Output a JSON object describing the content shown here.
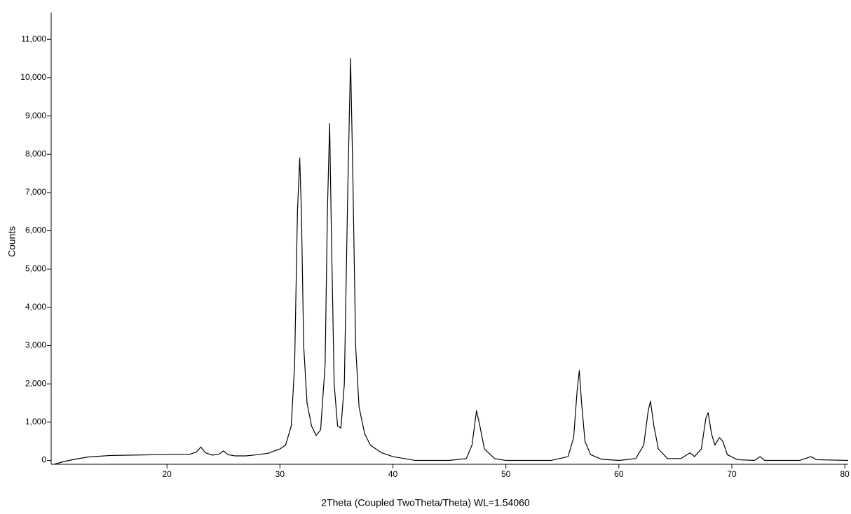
{
  "chart_data": {
    "type": "line",
    "xlabel": "2Theta (Coupled TwoTheta/Theta) WL=1.54060",
    "ylabel": "Counts",
    "color": "#000000",
    "x": [
      10,
      11,
      12,
      13,
      14,
      15,
      17,
      19,
      21,
      22,
      22.6,
      23,
      23.4,
      24,
      24.6,
      25,
      25.4,
      26,
      27,
      28,
      29,
      29.5,
      30,
      30.5,
      31,
      31.3,
      31.55,
      31.75,
      31.9,
      32.1,
      32.4,
      32.8,
      33.2,
      33.6,
      34.0,
      34.2,
      34.4,
      34.55,
      34.8,
      35.1,
      35.4,
      35.7,
      36.0,
      36.25,
      36.45,
      36.7,
      37.0,
      37.5,
      38,
      39,
      40,
      42,
      45,
      46.5,
      47.0,
      47.4,
      47.7,
      48.1,
      49,
      50,
      54,
      55.5,
      56.0,
      56.3,
      56.5,
      56.7,
      57.0,
      57.5,
      58.5,
      60,
      61.5,
      62.2,
      62.6,
      62.8,
      63.1,
      63.5,
      64.3,
      65.5,
      66.3,
      66.7,
      67.3,
      67.7,
      67.9,
      68.2,
      68.5,
      68.9,
      69.2,
      69.6,
      70.5,
      72,
      72.5,
      72.9,
      76,
      77,
      77.5,
      80.3
    ],
    "values": [
      -100,
      -20,
      40,
      90,
      110,
      130,
      140,
      150,
      160,
      160,
      220,
      350,
      200,
      140,
      160,
      250,
      150,
      120,
      120,
      150,
      190,
      250,
      300,
      400,
      900,
      2500,
      6500,
      7900,
      6500,
      3000,
      1500,
      900,
      650,
      800,
      2500,
      6500,
      8800,
      6000,
      2000,
      900,
      850,
      2000,
      7000,
      10500,
      7500,
      3000,
      1400,
      700,
      400,
      200,
      100,
      0,
      0,
      50,
      400,
      1300,
      900,
      300,
      50,
      0,
      0,
      100,
      600,
      1800,
      2350,
      1500,
      500,
      150,
      30,
      0,
      50,
      400,
      1300,
      1550,
      900,
      300,
      50,
      50,
      200,
      100,
      300,
      1100,
      1250,
      700,
      400,
      600,
      500,
      150,
      20,
      0,
      100,
      0,
      0,
      100,
      20,
      0
    ],
    "xlim": [
      9.75,
      80.3
    ],
    "ylim": [
      -100,
      11700
    ],
    "xticks": [
      20,
      30,
      40,
      50,
      60,
      70,
      80
    ],
    "yticks": [
      0,
      {
        "value": 1000,
        "label": "1,000"
      },
      {
        "value": 2000,
        "label": "2,000"
      },
      {
        "value": 3000,
        "label": "3,000"
      },
      {
        "value": 4000,
        "label": "4,000"
      },
      {
        "value": 5000,
        "label": "5,000"
      },
      {
        "value": 6000,
        "label": "6,000"
      },
      {
        "value": 7000,
        "label": "7,000"
      },
      {
        "value": 8000,
        "label": "8,000"
      },
      {
        "value": 9000,
        "label": "9,000"
      },
      {
        "value": 10000,
        "label": "10,000"
      },
      {
        "value": 11000,
        "label": "11,000"
      }
    ]
  }
}
